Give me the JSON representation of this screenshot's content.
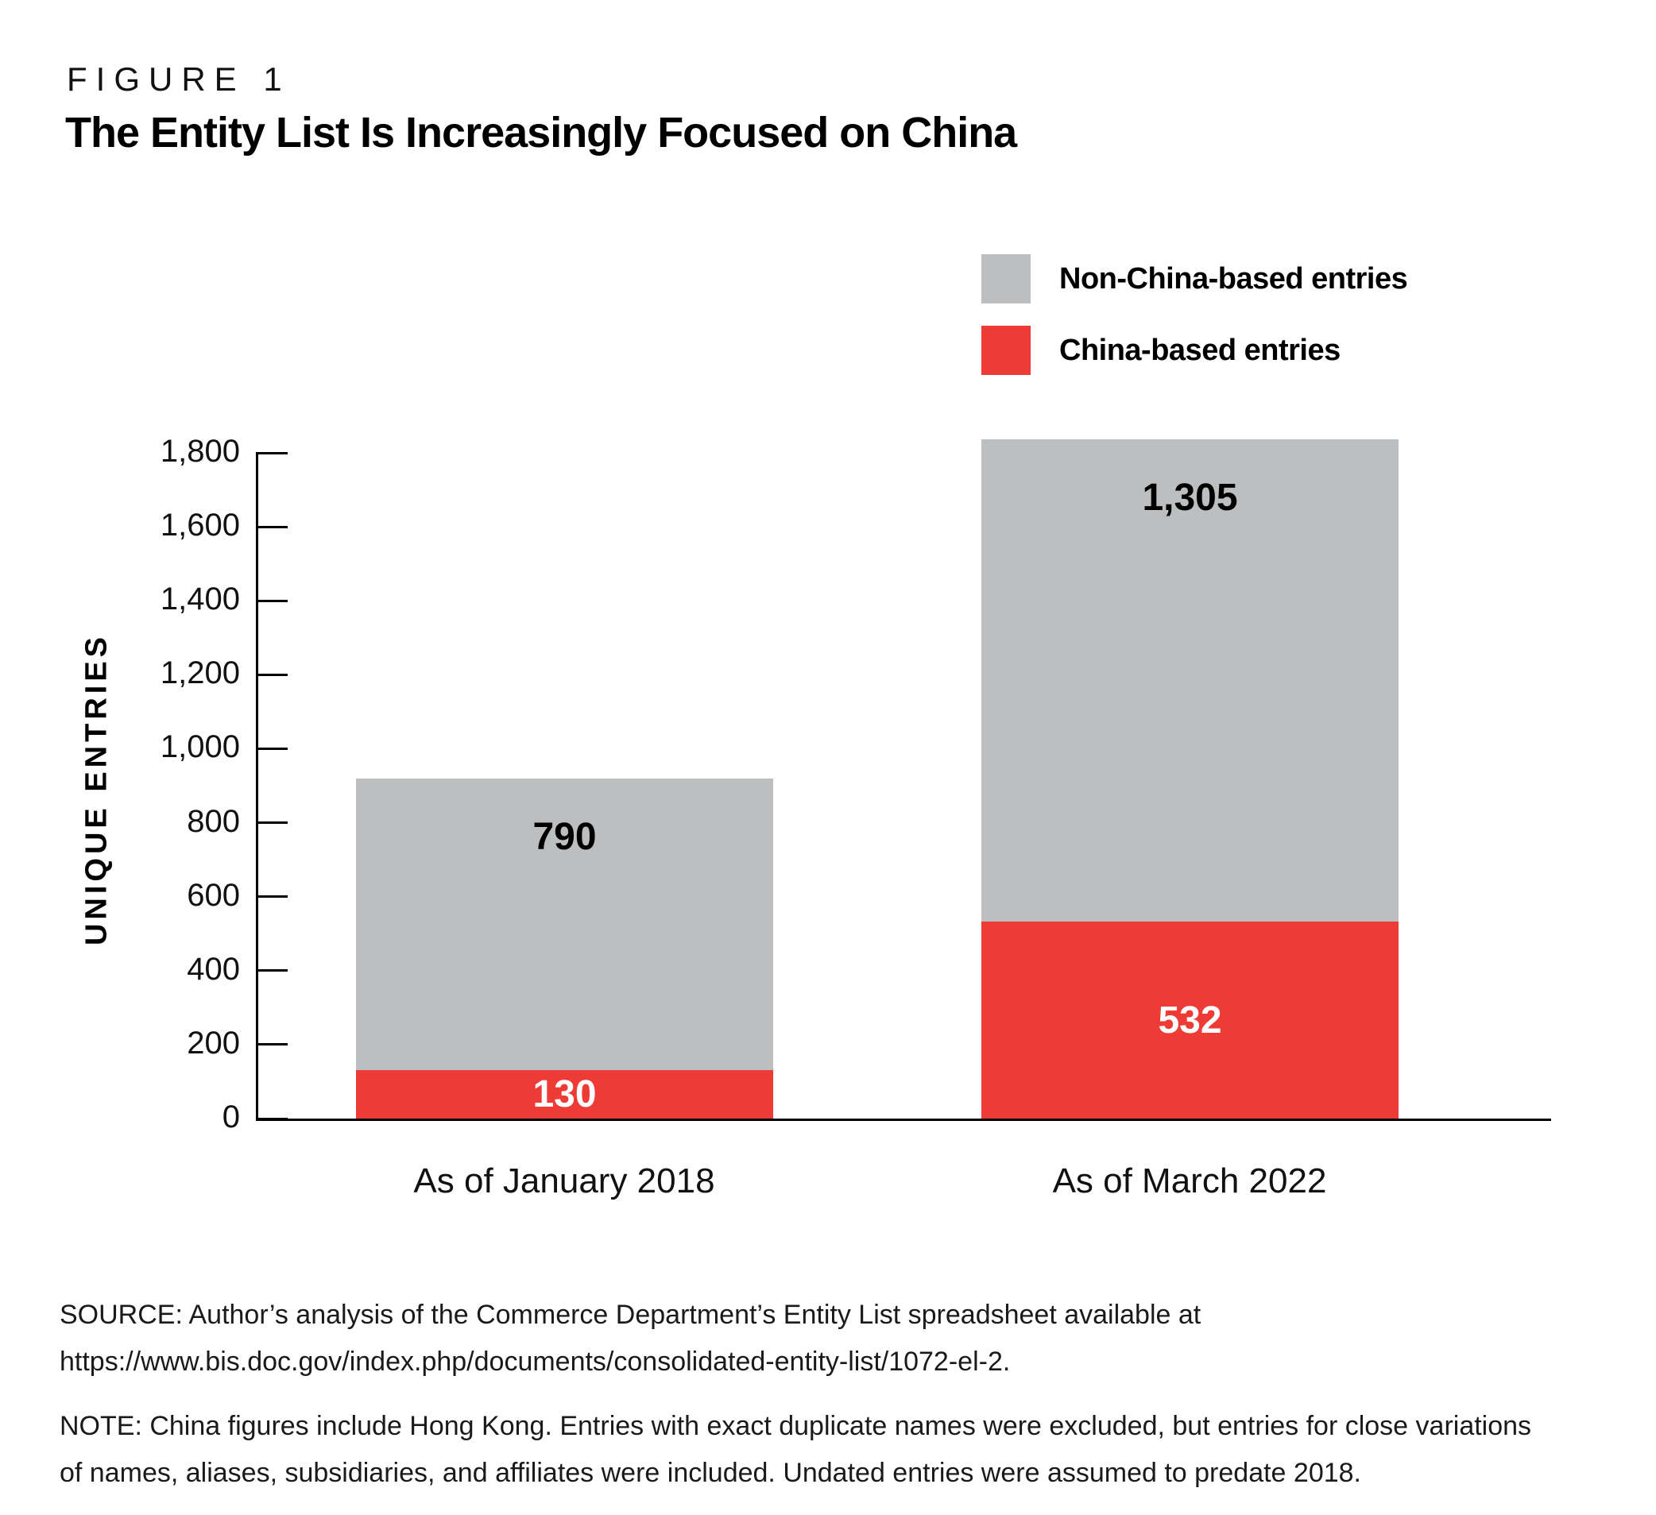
{
  "figure": {
    "label": "FIGURE 1",
    "title": "The Entity List Is Increasingly Focused on China"
  },
  "chart_data": {
    "type": "bar",
    "stacked": true,
    "title": "The Entity List Is Increasingly Focused on China",
    "categories": [
      "As of January 2018",
      "As of March 2022"
    ],
    "series": [
      {
        "name": "China-based entries",
        "color": "#EE3B35",
        "values": [
          130,
          532
        ],
        "labels": [
          "130",
          "532"
        ]
      },
      {
        "name": "Non-China-based entries",
        "color": "#BCBEC0",
        "values": [
          790,
          1305
        ],
        "labels": [
          "790",
          "1,305"
        ]
      }
    ],
    "totals": [
      920,
      1837
    ],
    "ylabel": "UNIQUE ENTRIES",
    "ylim": [
      0,
      1800
    ],
    "ytick_step": 200,
    "yticks": [
      "0",
      "200",
      "400",
      "600",
      "800",
      "1,000",
      "1,200",
      "1,400",
      "1,600",
      "1,800"
    ],
    "legend_position": "top-right",
    "grid": false,
    "value_label_color_on_gray": "#000000",
    "value_label_color_on_red": "#ffffff",
    "axis_color": "#000000"
  },
  "legend": {
    "non_china_label": "Non-China-based entries",
    "china_label": "China-based entries"
  },
  "source": {
    "lines": [
      "SOURCE: Author’s analysis of the Commerce Department’s Entity List spreadsheet available at",
      "https://www.bis.doc.gov/index.php/documents/consolidated-entity-list/1072-el-2."
    ]
  },
  "note": {
    "lines": [
      "NOTE: China figures include Hong Kong. Entries with exact duplicate names were excluded, but entries for close variations",
      "of names, aliases, subsidiaries, and affiliates were included. Undated entries were assumed to predate 2018."
    ]
  }
}
